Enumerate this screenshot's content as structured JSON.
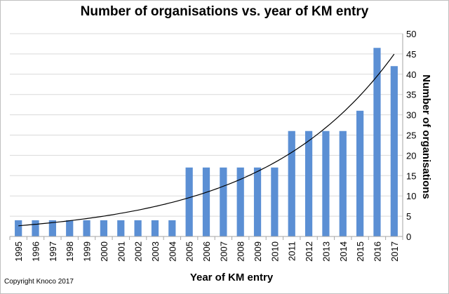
{
  "chart_data": {
    "type": "bar",
    "title": "Number of organisations vs. year of KM entry",
    "xlabel": "Year of KM entry",
    "ylabel": "Number of organisations",
    "ylim": [
      0,
      50
    ],
    "yticks": [
      "0",
      "5",
      "10",
      "15",
      "20",
      "25",
      "30",
      "35",
      "40",
      "45",
      "50"
    ],
    "y_axis_side": "right",
    "grid": "horizontal",
    "trendline": "exponential",
    "bar_color": "#5b8fd4",
    "categories": [
      "1995",
      "1996",
      "1997",
      "1998",
      "1999",
      "2000",
      "2001",
      "2002",
      "2003",
      "2004",
      "2005",
      "2006",
      "2007",
      "2008",
      "2009",
      "2010",
      "2011",
      "2012",
      "2013",
      "2014",
      "2015",
      "2016",
      "2017"
    ],
    "values": [
      4,
      4,
      4,
      4,
      4,
      4,
      4,
      4,
      4,
      4,
      17,
      17,
      17,
      17,
      17,
      17,
      26,
      26,
      26,
      26,
      31,
      46.5,
      42
    ],
    "annotation": "Copyright Knoco 2017"
  }
}
